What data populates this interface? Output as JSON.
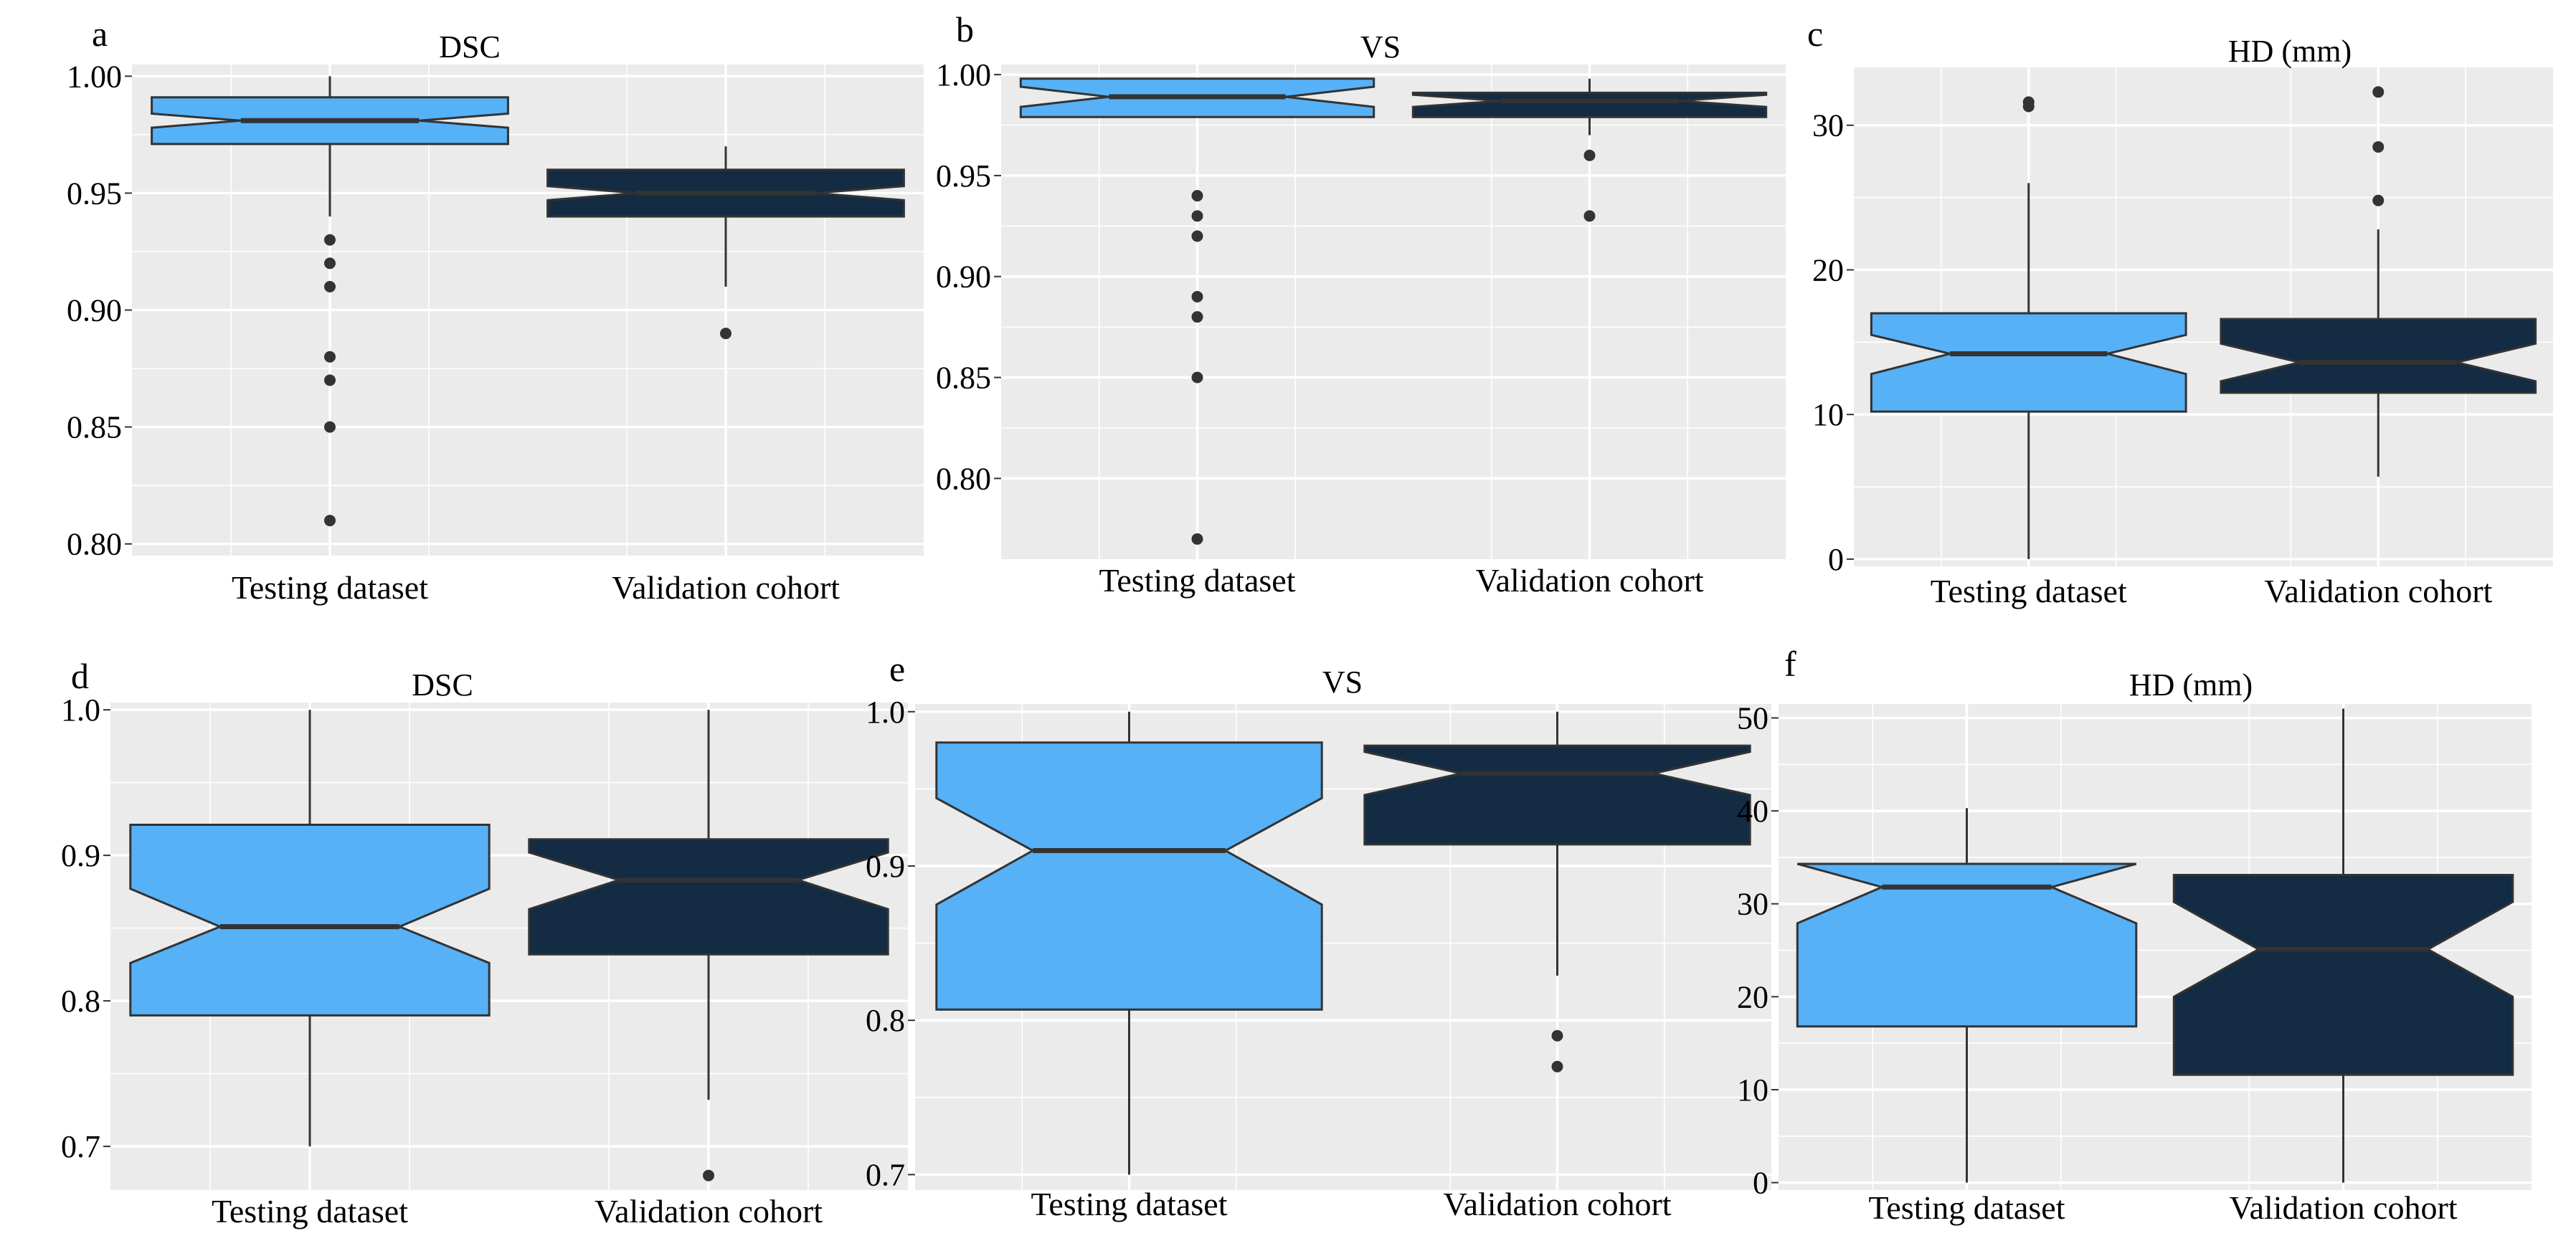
{
  "colors": {
    "testing": "#56b1f7",
    "validation": "#132b43"
  },
  "chart_data": [
    {
      "type": "boxplot",
      "letter": "a",
      "title": "DSC",
      "categories": [
        "Testing dataset",
        "Validation cohort"
      ],
      "ylim": [
        0.795,
        1.005
      ],
      "yticks": [
        0.8,
        0.85,
        0.9,
        0.95,
        1.0
      ],
      "ytick_labels": [
        "0.80",
        "0.85",
        "0.90",
        "0.95",
        "1.00"
      ],
      "boxes": [
        {
          "q1": 0.971,
          "median": 0.981,
          "q3": 0.991,
          "notch_low": 0.978,
          "notch_high": 0.984,
          "whisker_low": 0.94,
          "whisker_high": 1.0,
          "outliers": [
            0.93,
            0.92,
            0.91,
            0.88,
            0.87,
            0.85,
            0.81
          ]
        },
        {
          "q1": 0.94,
          "median": 0.95,
          "q3": 0.96,
          "notch_low": 0.947,
          "notch_high": 0.953,
          "whisker_low": 0.91,
          "whisker_high": 0.97,
          "outliers": [
            0.89
          ]
        }
      ]
    },
    {
      "type": "boxplot",
      "letter": "b",
      "title": "VS",
      "categories": [
        "Testing dataset",
        "Validation cohort"
      ],
      "ylim": [
        0.76,
        1.005
      ],
      "yticks": [
        0.8,
        0.85,
        0.9,
        0.95,
        1.0
      ],
      "ytick_labels": [
        "0.80",
        "0.85",
        "0.90",
        "0.95",
        "1.00"
      ],
      "boxes": [
        {
          "q1": 0.979,
          "median": 0.989,
          "q3": 0.998,
          "notch_low": 0.984,
          "notch_high": 0.994,
          "whisker_low": 0.979,
          "whisker_high": 0.998,
          "outliers": [
            0.94,
            0.93,
            0.92,
            0.89,
            0.88,
            0.85,
            0.77
          ]
        },
        {
          "q1": 0.979,
          "median": 0.987,
          "q3": 0.991,
          "notch_low": 0.984,
          "notch_high": 0.99,
          "whisker_low": 0.97,
          "whisker_high": 0.998,
          "outliers": [
            0.96,
            0.93
          ]
        }
      ]
    },
    {
      "type": "boxplot",
      "letter": "c",
      "title": "HD (mm)",
      "categories": [
        "Testing dataset",
        "Validation cohort"
      ],
      "ylim": [
        -0.5,
        34
      ],
      "yticks": [
        0,
        10,
        20,
        30
      ],
      "ytick_labels": [
        "0",
        "10",
        "20",
        "30"
      ],
      "boxes": [
        {
          "q1": 10.2,
          "median": 14.2,
          "q3": 17.0,
          "notch_low": 12.8,
          "notch_high": 15.5,
          "whisker_low": 0,
          "whisker_high": 26,
          "outliers": [
            31.3,
            31.6
          ]
        },
        {
          "q1": 11.5,
          "median": 13.6,
          "q3": 16.6,
          "notch_low": 12.3,
          "notch_high": 14.9,
          "whisker_low": 5.7,
          "whisker_high": 22.8,
          "outliers": [
            24.8,
            28.5,
            32.3
          ]
        }
      ]
    },
    {
      "type": "boxplot",
      "letter": "d",
      "title": "DSC",
      "categories": [
        "Testing dataset",
        "Validation cohort"
      ],
      "ylim": [
        0.67,
        1.005
      ],
      "yticks": [
        0.7,
        0.8,
        0.9,
        1.0
      ],
      "ytick_labels": [
        "0.7",
        "0.8",
        "0.9",
        "1.0"
      ],
      "boxes": [
        {
          "q1": 0.79,
          "median": 0.851,
          "q3": 0.921,
          "notch_low": 0.826,
          "notch_high": 0.877,
          "whisker_low": 0.7,
          "whisker_high": 1.0,
          "outliers": []
        },
        {
          "q1": 0.832,
          "median": 0.883,
          "q3": 0.911,
          "notch_low": 0.863,
          "notch_high": 0.902,
          "whisker_low": 0.732,
          "whisker_high": 1.0,
          "outliers": [
            0.68
          ]
        }
      ]
    },
    {
      "type": "boxplot",
      "letter": "e",
      "title": "VS",
      "categories": [
        "Testing dataset",
        "Validation cohort"
      ],
      "ylim": [
        0.69,
        1.005
      ],
      "yticks": [
        0.7,
        0.8,
        0.9,
        1.0
      ],
      "ytick_labels": [
        "0.7",
        "0.8",
        "0.9",
        "1.0"
      ],
      "boxes": [
        {
          "q1": 0.807,
          "median": 0.91,
          "q3": 0.98,
          "notch_low": 0.875,
          "notch_high": 0.944,
          "whisker_low": 0.7,
          "whisker_high": 1.0,
          "outliers": []
        },
        {
          "q1": 0.914,
          "median": 0.96,
          "q3": 0.978,
          "notch_low": 0.946,
          "notch_high": 0.974,
          "whisker_low": 0.829,
          "whisker_high": 1.0,
          "outliers": [
            0.79,
            0.77
          ]
        }
      ]
    },
    {
      "type": "boxplot",
      "letter": "f",
      "title": "HD (mm)",
      "categories": [
        "Testing dataset",
        "Validation cohort"
      ],
      "ylim": [
        -0.8,
        51.5
      ],
      "yticks": [
        0,
        10,
        20,
        30,
        40,
        50
      ],
      "ytick_labels": [
        "0",
        "10",
        "20",
        "30",
        "40",
        "50"
      ],
      "boxes": [
        {
          "q1": 16.8,
          "median": 31.8,
          "q3": 34.3,
          "notch_low": 27.9,
          "notch_high": 35.0,
          "whisker_low": 0,
          "whisker_high": 40.3,
          "outliers": []
        },
        {
          "q1": 11.6,
          "median": 25.1,
          "q3": 33.1,
          "notch_low": 20.0,
          "notch_high": 30.2,
          "whisker_low": 0,
          "whisker_high": 51.0,
          "outliers": []
        }
      ]
    }
  ]
}
